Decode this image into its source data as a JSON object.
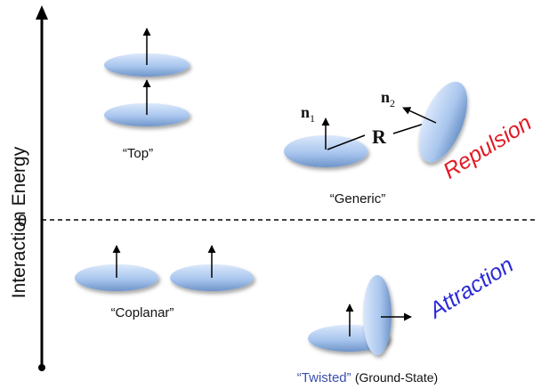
{
  "axis": {
    "label": "Interaction Energy",
    "zero": "0"
  },
  "configurations": {
    "top": {
      "label": "“Top”"
    },
    "generic": {
      "label": "“Generic”",
      "n1": {
        "label": "n",
        "subscript": "1"
      },
      "n2": {
        "label": "n",
        "subscript": "2"
      },
      "separation": "R"
    },
    "coplanar": {
      "label": "“Coplanar”"
    },
    "twisted": {
      "label": "“Twisted”",
      "note": "(Ground-State)"
    }
  },
  "regions": {
    "repulsion": "Repulsion",
    "attraction": "Attraction"
  }
}
